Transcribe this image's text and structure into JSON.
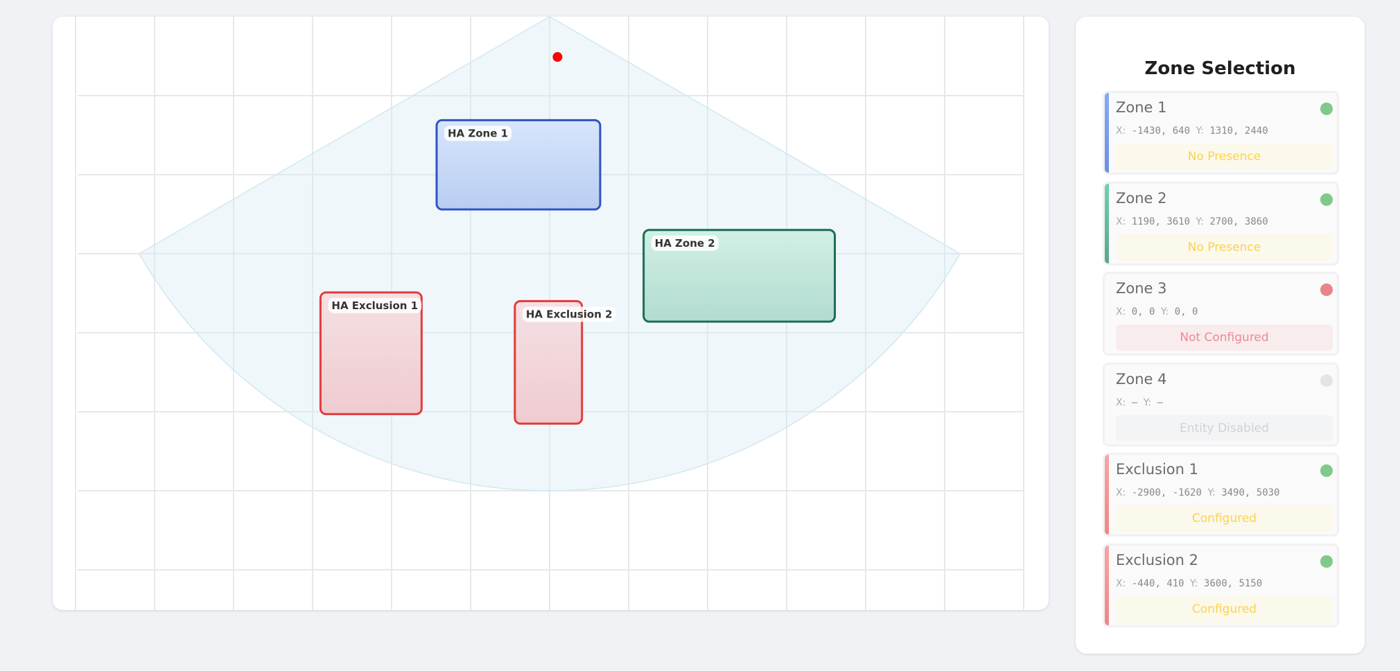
{
  "map": {
    "range_mm": 6000,
    "fov_deg": 120,
    "grid_step_mm": 1000,
    "target": {
      "x": 100,
      "y": 510,
      "color": "#ff0000"
    },
    "zones": [
      {
        "label": "HA Zone 1",
        "type": "zone",
        "x": [
          -1430,
          640
        ],
        "y": [
          1310,
          2440
        ],
        "fill_top": "#d6e5fb",
        "fill_bottom": "#b7cbf1",
        "stroke": "#2f52c4"
      },
      {
        "label": "HA Zone 2",
        "type": "zone",
        "x": [
          1190,
          3610
        ],
        "y": [
          2700,
          3860
        ],
        "fill_top": "#cff0e5",
        "fill_bottom": "#afdacd",
        "stroke": "#1d6c53"
      },
      {
        "label": "HA Exclusion 1",
        "type": "exclusion",
        "x": [
          -2900,
          -1620
        ],
        "y": [
          3490,
          5030
        ],
        "fill_top": "#f4dfe2",
        "fill_bottom": "#efc9ce",
        "stroke": "#e23b3b"
      },
      {
        "label": "HA Exclusion 2",
        "type": "exclusion",
        "x": [
          -440,
          410
        ],
        "y": [
          3600,
          5150
        ],
        "fill_top": "#f4dfe2",
        "fill_bottom": "#efc9ce",
        "stroke": "#e23b3b"
      }
    ]
  },
  "panel": {
    "title": "Zone Selection",
    "items": [
      {
        "name": "Zone 1",
        "x_label": "X:",
        "x": "-1430, 640",
        "y_label": "Y:",
        "y": "1310, 2440",
        "status": "No Presence",
        "bar": [
          "#86aaf5",
          "#6f8fe0"
        ],
        "dot": "#7fc98a",
        "status_bg": "#fbf8ec",
        "status_color": "#fdd24f"
      },
      {
        "name": "Zone 2",
        "x_label": "X:",
        "x": "1190, 3610",
        "y_label": "Y:",
        "y": "2700, 3860",
        "status": "No Presence",
        "bar": [
          "#6fd1ad",
          "#5fa58c"
        ],
        "dot": "#7fc98a",
        "status_bg": "#fbf8ec",
        "status_color": "#fdd24f"
      },
      {
        "name": "Zone 3",
        "x_label": "X:",
        "x": "0, 0",
        "y_label": "Y:",
        "y": "0, 0",
        "status": "Not Configured",
        "bar": null,
        "dot": "#e9848b",
        "status_bg": "#f9eced",
        "status_color": "#ec8a92"
      },
      {
        "name": "Zone 4",
        "x_label": "X:",
        "x": "–",
        "y_label": "Y:",
        "y": "–",
        "status": "Entity Disabled",
        "bar": null,
        "dot": "#e1e4e9",
        "status_bg": "#f3f4f6",
        "status_color": "#cfd2d8"
      },
      {
        "name": "Exclusion 1",
        "x_label": "X:",
        "x": "-2900, -1620",
        "y_label": "Y:",
        "y": "3490, 5030",
        "status": "Configured",
        "bar": [
          "#f8a5a5",
          "#f08585"
        ],
        "dot": "#7fc98a",
        "status_bg": "#fbf8ec",
        "status_color": "#fdd24f"
      },
      {
        "name": "Exclusion 2",
        "x_label": "X:",
        "x": "-440, 410",
        "y_label": "Y:",
        "y": "3600, 5150",
        "status": "Configured",
        "bar": [
          "#f8a5a5",
          "#f08585"
        ],
        "dot": "#7fc98a",
        "status_bg": "#fbf8ec",
        "status_color": "#fdd24f"
      }
    ]
  }
}
